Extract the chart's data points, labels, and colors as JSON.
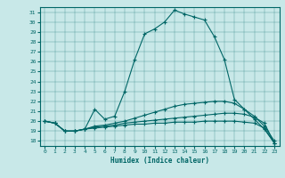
{
  "xlabel": "Humidex (Indice chaleur)",
  "bg_color": "#c8e8e8",
  "line_color": "#006666",
  "xlim": [
    -0.5,
    23.5
  ],
  "ylim": [
    17.5,
    31.5
  ],
  "yticks": [
    18,
    19,
    20,
    21,
    22,
    23,
    24,
    25,
    26,
    27,
    28,
    29,
    30,
    31
  ],
  "xticks": [
    0,
    1,
    2,
    3,
    4,
    5,
    6,
    7,
    8,
    9,
    10,
    11,
    12,
    13,
    14,
    15,
    16,
    17,
    18,
    19,
    20,
    21,
    22,
    23
  ],
  "lines": [
    {
      "x": [
        0,
        1,
        2,
        3,
        4,
        5,
        6,
        7,
        8,
        9,
        10,
        11,
        12,
        13,
        14,
        15,
        16,
        17,
        18,
        19,
        20,
        21,
        22,
        23
      ],
      "y": [
        20.0,
        19.8,
        19.0,
        19.0,
        19.2,
        21.2,
        20.2,
        20.5,
        23.0,
        26.2,
        28.8,
        29.3,
        30.0,
        31.2,
        30.8,
        30.5,
        30.2,
        28.5,
        26.2,
        22.2,
        21.2,
        20.2,
        19.2,
        17.8
      ]
    },
    {
      "x": [
        0,
        1,
        2,
        3,
        4,
        5,
        6,
        7,
        8,
        9,
        10,
        11,
        12,
        13,
        14,
        15,
        16,
        17,
        18,
        19,
        20,
        21,
        22,
        23
      ],
      "y": [
        20.0,
        19.8,
        19.0,
        19.0,
        19.2,
        19.5,
        19.6,
        19.8,
        20.0,
        20.3,
        20.6,
        20.9,
        21.2,
        21.5,
        21.7,
        21.8,
        21.9,
        22.0,
        22.0,
        21.8,
        21.2,
        20.5,
        19.5,
        18.0
      ]
    },
    {
      "x": [
        0,
        1,
        2,
        3,
        4,
        5,
        6,
        7,
        8,
        9,
        10,
        11,
        12,
        13,
        14,
        15,
        16,
        17,
        18,
        19,
        20,
        21,
        22,
        23
      ],
      "y": [
        20.0,
        19.8,
        19.0,
        19.0,
        19.2,
        19.4,
        19.5,
        19.6,
        19.8,
        19.9,
        20.0,
        20.1,
        20.2,
        20.3,
        20.4,
        20.5,
        20.6,
        20.7,
        20.8,
        20.8,
        20.7,
        20.4,
        19.8,
        17.8
      ]
    },
    {
      "x": [
        0,
        1,
        2,
        3,
        4,
        5,
        6,
        7,
        8,
        9,
        10,
        11,
        12,
        13,
        14,
        15,
        16,
        17,
        18,
        19,
        20,
        21,
        22,
        23
      ],
      "y": [
        20.0,
        19.8,
        19.0,
        19.0,
        19.2,
        19.3,
        19.4,
        19.5,
        19.6,
        19.7,
        19.7,
        19.8,
        19.8,
        19.9,
        19.9,
        19.9,
        20.0,
        20.0,
        20.0,
        20.0,
        19.9,
        19.8,
        19.3,
        17.8
      ]
    }
  ]
}
